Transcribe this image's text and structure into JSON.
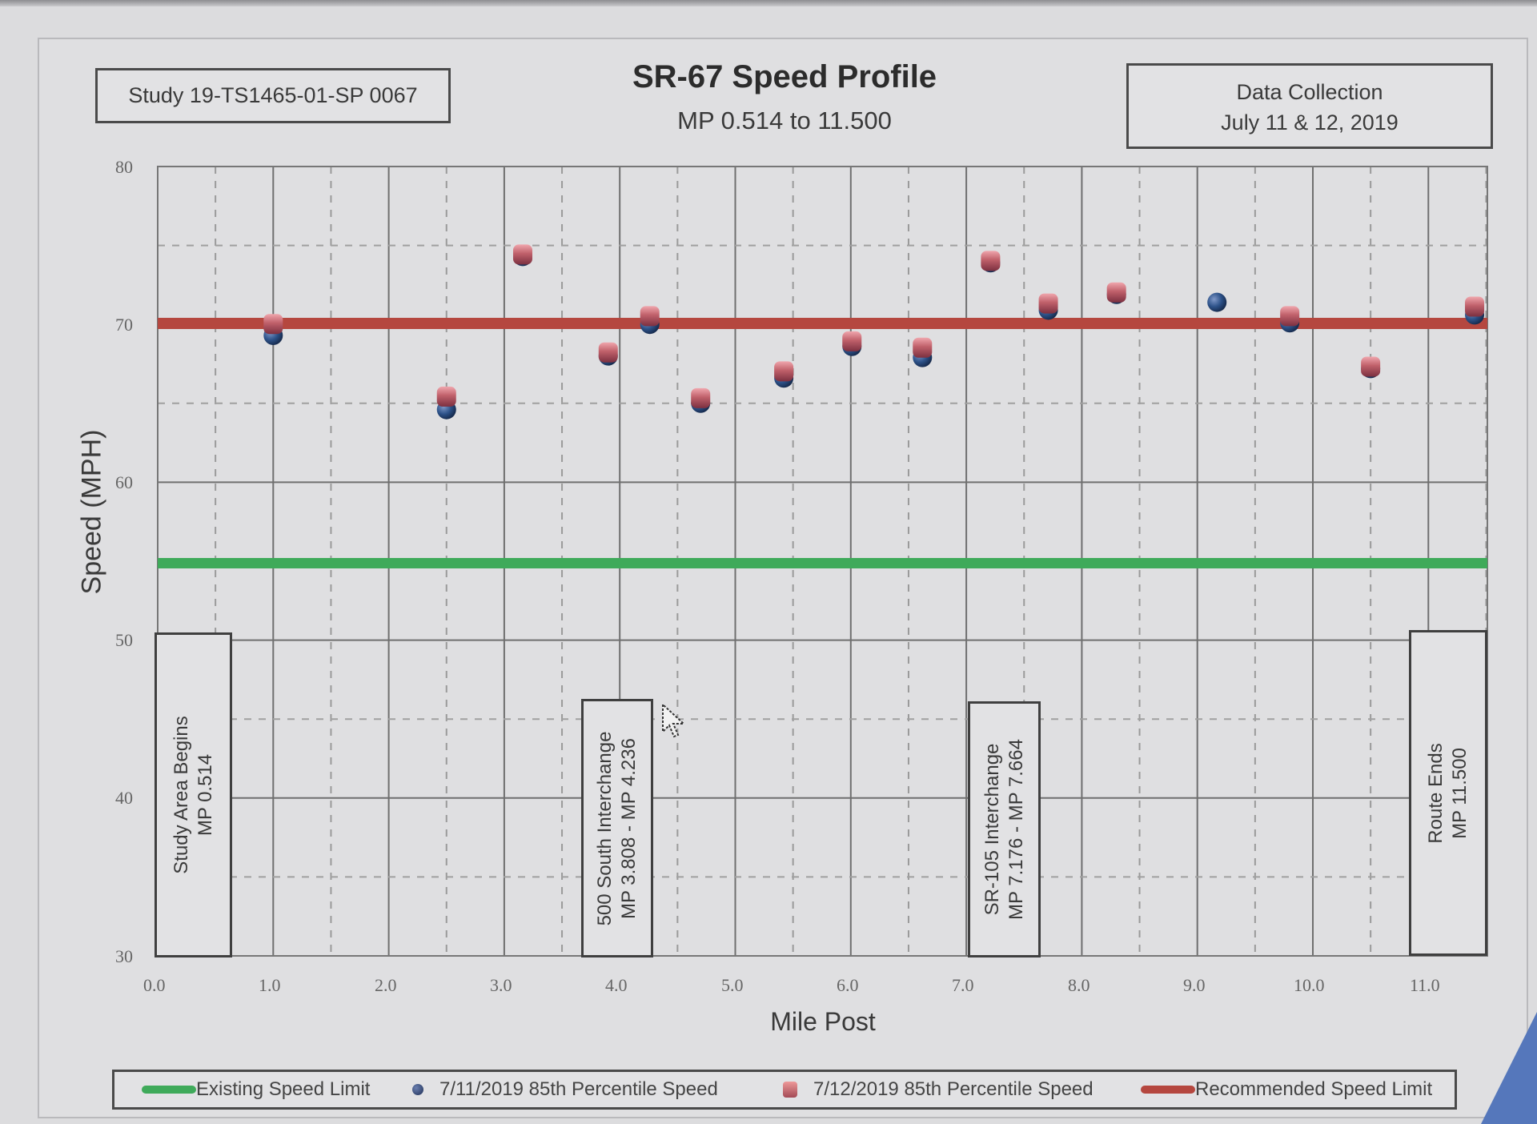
{
  "study_box": "Study 19-TS1465-01-SP 0067",
  "title": "SR-67 Speed Profile",
  "subtitle": "MP 0.514 to 11.500",
  "data_collection": {
    "line1": "Data Collection",
    "line2": "July 11 & 12, 2019"
  },
  "axes": {
    "ylabel": "Speed (MPH)",
    "xlabel": "Mile Post",
    "yticks": [
      "80",
      "70",
      "60",
      "50",
      "40",
      "30"
    ],
    "xticks": [
      "0.0",
      "1.0",
      "2.0",
      "3.0",
      "4.0",
      "5.0",
      "6.0",
      "7.0",
      "8.0",
      "9.0",
      "10.0",
      "11.0"
    ]
  },
  "annotations": [
    {
      "line1": "Study Area Begins",
      "line2": "MP 0.514"
    },
    {
      "line1": "500 South Interchange",
      "line2": "MP 3.808 - MP 4.236"
    },
    {
      "line1": "SR-105 Interchange",
      "line2": "MP 7.176 - MP 7.664"
    },
    {
      "line1": "Route Ends",
      "line2": "MP 11.500"
    }
  ],
  "legend": {
    "existing": "Existing Speed Limit",
    "day1": "7/11/2019 85th Percentile Speed",
    "day2": "7/12/2019 85th Percentile Speed",
    "recommended": "Recommended Speed Limit"
  },
  "colors": {
    "existing": "#3faa5a",
    "recommended": "#b5473f",
    "day1": "#2a4a80",
    "day2": "#b0505a"
  },
  "chart_data": {
    "type": "scatter",
    "title": "SR-67 Speed Profile",
    "subtitle": "MP 0.514 to 11.500",
    "xlabel": "Mile Post",
    "ylabel": "Speed (MPH)",
    "xlim": [
      0,
      11.5
    ],
    "ylim": [
      30,
      80
    ],
    "xticks": [
      0,
      1,
      2,
      3,
      4,
      5,
      6,
      7,
      8,
      9,
      10,
      11
    ],
    "yticks": [
      30,
      40,
      50,
      60,
      70,
      80
    ],
    "grid": true,
    "legend_position": "bottom",
    "series": [
      {
        "name": "Existing Speed Limit",
        "type": "line",
        "x": [
          0,
          11.5
        ],
        "y": [
          55,
          55
        ]
      },
      {
        "name": "Recommended Speed Limit",
        "type": "line",
        "x": [
          0,
          11.5
        ],
        "y": [
          70,
          70
        ]
      },
      {
        "name": "7/11/2019 85th Percentile Speed",
        "type": "scatter",
        "x": [
          1.0,
          2.5,
          3.16,
          3.9,
          4.26,
          4.7,
          5.42,
          6.01,
          6.62,
          7.21,
          7.71,
          8.3,
          9.17,
          9.8,
          10.5,
          11.4
        ],
        "y": [
          69.3,
          64.6,
          74.3,
          68.0,
          70.0,
          65.0,
          66.6,
          68.6,
          67.9,
          73.9,
          70.9,
          71.9,
          71.4,
          70.1,
          67.2,
          70.6
        ]
      },
      {
        "name": "7/12/2019 85th Percentile Speed",
        "type": "scatter",
        "x": [
          1.0,
          2.5,
          3.16,
          3.9,
          4.26,
          4.7,
          5.42,
          6.01,
          6.62,
          7.21,
          7.71,
          8.3,
          9.8,
          10.5,
          11.4
        ],
        "y": [
          70.0,
          65.4,
          74.4,
          68.2,
          70.5,
          65.3,
          67.0,
          68.9,
          68.5,
          74.0,
          71.3,
          72.0,
          70.5,
          67.3,
          71.1
        ]
      }
    ],
    "annotations": [
      {
        "text": "Study Area Begins MP 0.514",
        "x": 0.514
      },
      {
        "text": "500 South Interchange MP 3.808 - MP 4.236",
        "x": [
          3.808,
          4.236
        ]
      },
      {
        "text": "SR-105 Interchange MP 7.176 - MP 7.664",
        "x": [
          7.176,
          7.664
        ]
      },
      {
        "text": "Route Ends MP 11.500",
        "x": 11.5
      }
    ]
  }
}
